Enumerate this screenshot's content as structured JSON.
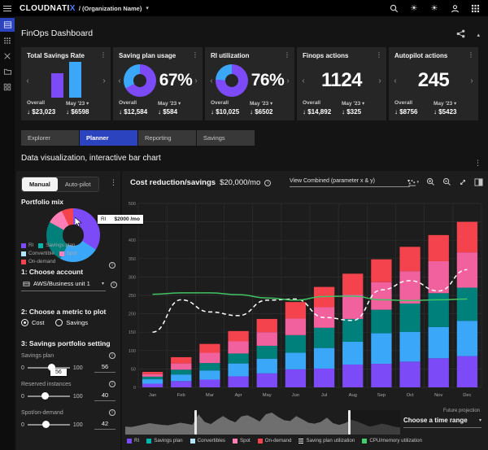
{
  "topbar": {
    "brand": "CLOUDNATI",
    "brand_x": "X",
    "org": "/ (Organization Name)"
  },
  "page": {
    "title": "FinOps Dashboard",
    "section_title": "Data visualization, interactive bar chart"
  },
  "colors": {
    "purple": "#7c4af7",
    "blue": "#3aa7f8",
    "teal_bar": "#00807b",
    "teal_chip": "#00b5ab",
    "convertibles_chip": "#b3e6ff",
    "pink": "#f0619e",
    "pink_chip": "#ff7eb6",
    "red": "#f4434c",
    "green_line": "#41c464",
    "white_line": "#ffffff",
    "tab_active": "#2c43bf"
  },
  "cards": [
    {
      "title": "Total Savings Rate",
      "bars": [
        30,
        44
      ],
      "overall_label": "Overall",
      "overall_value": "↓ $23,023",
      "period_label": "May '23 ▾",
      "period_value": "↓ $6598"
    },
    {
      "title": "Saving plan usage",
      "donut_pct": 67,
      "big": "67%",
      "overall_label": "Overall",
      "overall_value": "↓ $12,584",
      "period_label": "May '23 ▾",
      "period_value": "↓ $584"
    },
    {
      "title": "RI utilization",
      "donut_pct": 76,
      "big": "76%",
      "overall_label": "Overall",
      "overall_value": "↓ $10,025",
      "period_label": "May '23 ▾",
      "period_value": "↓ $6502"
    },
    {
      "title": "Finops actions",
      "big": "1124",
      "overall_label": "Overall",
      "overall_value": "↓ $14,892",
      "period_label": "May '23 ▾",
      "period_value": "↓ $325"
    },
    {
      "title": "Autopilot actions",
      "big": "245",
      "overall_label": "Overall",
      "overall_value": "↓ $8756",
      "period_label": "May '23 ▾",
      "period_value": "↓ $5423"
    }
  ],
  "tabs": [
    {
      "label": "Explorer",
      "active": false
    },
    {
      "label": "Planner",
      "active": true
    },
    {
      "label": "Reporting",
      "active": false
    },
    {
      "label": "Savings",
      "active": false
    }
  ],
  "controls": {
    "mode_manual": "Manual",
    "mode_autopilot": "Auto-pilot",
    "portfolio": {
      "title": "Portfolio mix",
      "tooltip": {
        "label": "RI",
        "value": "$2000 /mo"
      },
      "segments": [
        {
          "label": "RI",
          "color": "#7c4af7",
          "pct": 34
        },
        {
          "label": "Convertible",
          "color": "#3aa7f8",
          "pct": 24
        },
        {
          "label": "Savings plan",
          "color": "#00807b",
          "pct": 25
        },
        {
          "label": "Spot",
          "color": "#ff7eb6",
          "pct": 10
        },
        {
          "label": "On-demand",
          "color": "#f4434c",
          "pct": 7
        }
      ],
      "legend": [
        {
          "label": "RI",
          "color": "#7c4af7"
        },
        {
          "label": "Savings plan",
          "color": "#00b5ab"
        },
        {
          "label": "Convertible",
          "color": "#b3e6ff"
        },
        {
          "label": "Spot",
          "color": "#ff7eb6"
        },
        {
          "label": "On-demand",
          "color": "#f4434c"
        }
      ]
    },
    "step1_title": "1: Choose account",
    "account_value": "AWS/Business unit 1",
    "step2_title": "2: Choose a metric to plot",
    "metric_options": [
      {
        "label": "Cost",
        "selected": true
      },
      {
        "label": "Savings",
        "selected": false
      }
    ],
    "step3_title": "3: Savings portfolio setting",
    "sliders": [
      {
        "label": "Savings plan",
        "min": "0",
        "max": "100",
        "value": "56",
        "tooltip": "56"
      },
      {
        "label": "Reserved instances",
        "min": "0",
        "max": "100",
        "value": "40"
      },
      {
        "label": "Spot/on-demand",
        "min": "0",
        "max": "100",
        "value": "42"
      }
    ]
  },
  "chart_header": {
    "title": "Cost reduction/savings",
    "subtitle": "$20,000/mo",
    "view_dropdown": "View Combined (parameter x & y)"
  },
  "chart_data": {
    "type": "bar",
    "variant": "stacked bars + 2 overlay lines",
    "title": "Cost reduction/savings $20,000/mo",
    "xlabel": "",
    "ylabel": "",
    "ylim": [
      0,
      500
    ],
    "ytick_step": 50,
    "grid": true,
    "legend_position": "bottom",
    "categories": [
      "Jan",
      "Feb",
      "Mar",
      "Apr",
      "May",
      "Jun",
      "Jul",
      "Aug",
      "Sep",
      "Oct",
      "Nov",
      "Dec"
    ],
    "series": [
      {
        "name": "RI",
        "color": "#7c4af7",
        "values": [
          10,
          17,
          21,
          30,
          38,
          49,
          51,
          62,
          64,
          70,
          79,
          85
        ]
      },
      {
        "name": "Convertibles",
        "color": "#3aa7f8",
        "values": [
          12,
          18,
          25,
          35,
          40,
          45,
          56,
          62,
          83,
          81,
          85,
          96
        ]
      },
      {
        "name": "Savings plan",
        "color": "#00807b",
        "values": [
          7,
          13,
          20,
          27,
          35,
          48,
          55,
          62,
          64,
          77,
          92,
          90
        ]
      },
      {
        "name": "Spot",
        "color": "#f0619e",
        "values": [
          7,
          17,
          28,
          33,
          37,
          45,
          56,
          66,
          75,
          88,
          87,
          96
        ]
      },
      {
        "name": "On-demand",
        "color": "#f4434c",
        "values": [
          6,
          17,
          24,
          28,
          36,
          45,
          55,
          57,
          62,
          66,
          71,
          83
        ]
      }
    ],
    "lines": [
      {
        "name": "Saving plan utilization",
        "color": "#ffffff",
        "dashed": true,
        "values": [
          150,
          238,
          205,
          195,
          237,
          240,
          190,
          182,
          265,
          290,
          262,
          320
        ]
      },
      {
        "name": "CPU/memory utilization",
        "color": "#41c464",
        "dashed": false,
        "values": [
          253,
          257,
          257,
          252,
          243,
          237,
          247,
          248,
          238,
          236,
          238,
          240
        ]
      }
    ],
    "legend": [
      {
        "label": "RI",
        "color": "#7c4af7"
      },
      {
        "label": "Savings plan",
        "color": "#00b5ab"
      },
      {
        "label": "Convertibles",
        "color": "#b3e6ff"
      },
      {
        "label": "Spot",
        "color": "#ff7eb6"
      },
      {
        "label": "On-demand",
        "color": "#f4434c"
      },
      {
        "label": "Saving plan utilization",
        "stripes": true
      },
      {
        "label": "CPU/memory utilization",
        "color": "#42d06c"
      }
    ],
    "sparkline": {
      "values": [
        30,
        28,
        34,
        40,
        46,
        42,
        38,
        36,
        42,
        48,
        44,
        38,
        88,
        52,
        42,
        62,
        80,
        62,
        50,
        78,
        84,
        70,
        54,
        88,
        96,
        76,
        60,
        56,
        80,
        64,
        48,
        44,
        52,
        72,
        46,
        38,
        46,
        62,
        54,
        42,
        30,
        36,
        44,
        38,
        30,
        26
      ],
      "handles_pct": [
        25,
        81
      ],
      "future_label": "Future projection"
    },
    "bottom_dropdown": "Choose a time range"
  }
}
